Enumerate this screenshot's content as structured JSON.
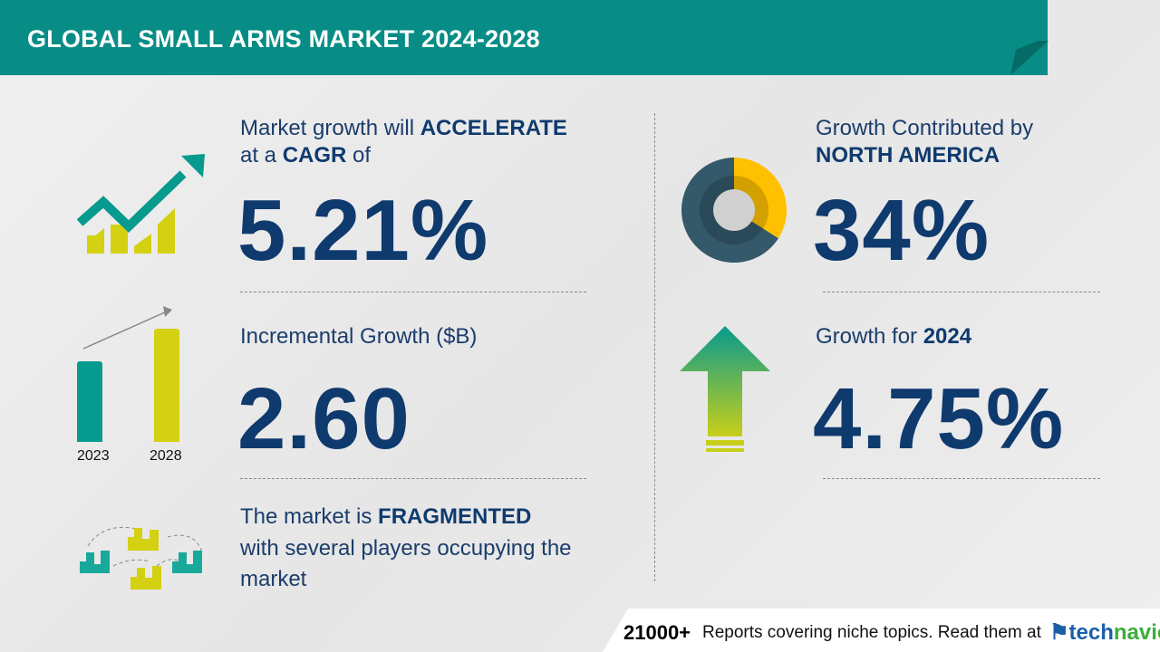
{
  "header": {
    "title": "GLOBAL SMALL ARMS MARKET 2024-2028"
  },
  "colors": {
    "teal": "#078d86",
    "yellow_green": "#d4d012",
    "navy": "#0f3a6e",
    "donut_dark": "#34596b",
    "donut_yellow": "#ffc000"
  },
  "cagr": {
    "line1_prefix": "Market growth will ",
    "line1_bold": "ACCELERATE",
    "line2_prefix": "at a ",
    "line2_bold": "CAGR",
    "line2_suffix": " of",
    "value": "5.21%",
    "icon": "growth-chart-icon"
  },
  "incremental": {
    "label": "Incremental Growth ($B)",
    "value": "2.60",
    "bar_years": [
      "2023",
      "2028"
    ],
    "icon": "bar-comparison-icon"
  },
  "market": {
    "line1_prefix": "The market is ",
    "line1_bold": "FRAGMENTED",
    "line2": "with several players occupying the",
    "line3": "market",
    "icon": "buildings-network-icon"
  },
  "region": {
    "line1": "Growth Contributed by",
    "line2_bold": "NORTH AMERICA",
    "value": "34%",
    "share": 34,
    "icon": "donut-chart-icon"
  },
  "yoy": {
    "label_prefix": "Growth for ",
    "label_bold": "2024",
    "value": "4.75%",
    "icon": "up-arrow-icon"
  },
  "footer": {
    "count": "21000+",
    "text": "Reports covering niche topics. Read them at",
    "logo_tech": "tech",
    "logo_navio": "navio"
  }
}
